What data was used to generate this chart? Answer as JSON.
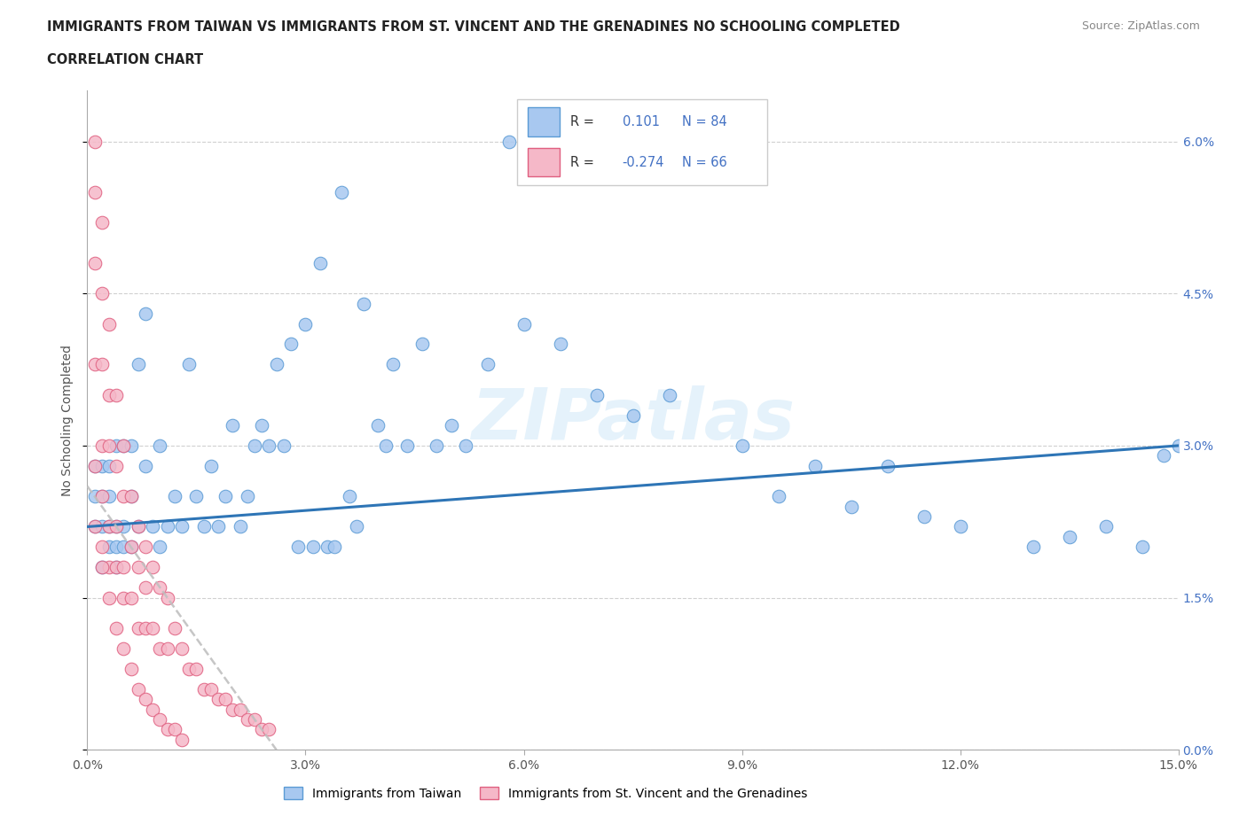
{
  "title_line1": "IMMIGRANTS FROM TAIWAN VS IMMIGRANTS FROM ST. VINCENT AND THE GRENADINES NO SCHOOLING COMPLETED",
  "title_line2": "CORRELATION CHART",
  "source_text": "Source: ZipAtlas.com",
  "ylabel": "No Schooling Completed",
  "xlim": [
    0.0,
    0.15
  ],
  "ylim": [
    0.0,
    0.065
  ],
  "xticks": [
    0.0,
    0.03,
    0.06,
    0.09,
    0.12,
    0.15
  ],
  "xticklabels": [
    "0.0%",
    "3.0%",
    "6.0%",
    "9.0%",
    "12.0%",
    "15.0%"
  ],
  "yticks": [
    0.0,
    0.015,
    0.03,
    0.045,
    0.06
  ],
  "ytick_labels_right": [
    "0.0%",
    "1.5%",
    "3.0%",
    "4.5%",
    "6.0%"
  ],
  "taiwan_color": "#a8c8f0",
  "taiwan_edge": "#5b9bd5",
  "stvincent_color": "#f5b8c8",
  "stvincent_edge": "#e06080",
  "taiwan_line_color": "#2e75b6",
  "stvincent_line_color": "#c0c0c0",
  "taiwan_R": "0.101",
  "taiwan_N": "84",
  "stvincent_R": "-0.274",
  "stvincent_N": "66",
  "watermark": "ZIPatlas",
  "legend_label_taiwan": "Immigrants from Taiwan",
  "legend_label_stvincent": "Immigrants from St. Vincent and the Grenadines",
  "tw_trend_x": [
    0.0,
    0.15
  ],
  "tw_trend_y": [
    0.022,
    0.03
  ],
  "sv_trend_x": [
    0.0,
    0.026
  ],
  "sv_trend_y": [
    0.026,
    0.0
  ],
  "taiwan_pts_x": [
    0.001,
    0.001,
    0.001,
    0.002,
    0.002,
    0.002,
    0.002,
    0.003,
    0.003,
    0.003,
    0.003,
    0.004,
    0.004,
    0.004,
    0.004,
    0.005,
    0.005,
    0.005,
    0.006,
    0.006,
    0.006,
    0.007,
    0.007,
    0.008,
    0.008,
    0.009,
    0.01,
    0.01,
    0.011,
    0.012,
    0.013,
    0.014,
    0.015,
    0.016,
    0.017,
    0.018,
    0.019,
    0.02,
    0.021,
    0.022,
    0.023,
    0.024,
    0.025,
    0.026,
    0.027,
    0.028,
    0.029,
    0.03,
    0.031,
    0.032,
    0.033,
    0.034,
    0.035,
    0.036,
    0.037,
    0.038,
    0.04,
    0.041,
    0.042,
    0.044,
    0.046,
    0.048,
    0.05,
    0.052,
    0.055,
    0.058,
    0.06,
    0.065,
    0.07,
    0.075,
    0.08,
    0.09,
    0.095,
    0.1,
    0.11,
    0.12,
    0.13,
    0.14,
    0.148,
    0.15,
    0.105,
    0.115,
    0.135,
    0.145
  ],
  "taiwan_pts_y": [
    0.022,
    0.025,
    0.028,
    0.018,
    0.022,
    0.025,
    0.028,
    0.02,
    0.022,
    0.025,
    0.028,
    0.018,
    0.02,
    0.022,
    0.03,
    0.02,
    0.022,
    0.03,
    0.02,
    0.025,
    0.03,
    0.022,
    0.038,
    0.028,
    0.043,
    0.022,
    0.02,
    0.03,
    0.022,
    0.025,
    0.022,
    0.038,
    0.025,
    0.022,
    0.028,
    0.022,
    0.025,
    0.032,
    0.022,
    0.025,
    0.03,
    0.032,
    0.03,
    0.038,
    0.03,
    0.04,
    0.02,
    0.042,
    0.02,
    0.048,
    0.02,
    0.02,
    0.055,
    0.025,
    0.022,
    0.044,
    0.032,
    0.03,
    0.038,
    0.03,
    0.04,
    0.03,
    0.032,
    0.03,
    0.038,
    0.06,
    0.042,
    0.04,
    0.035,
    0.033,
    0.035,
    0.03,
    0.025,
    0.028,
    0.028,
    0.022,
    0.02,
    0.022,
    0.029,
    0.03,
    0.024,
    0.023,
    0.021,
    0.02
  ],
  "sv_pts_x": [
    0.001,
    0.001,
    0.001,
    0.001,
    0.001,
    0.002,
    0.002,
    0.002,
    0.002,
    0.002,
    0.002,
    0.003,
    0.003,
    0.003,
    0.003,
    0.003,
    0.004,
    0.004,
    0.004,
    0.004,
    0.005,
    0.005,
    0.005,
    0.005,
    0.006,
    0.006,
    0.006,
    0.007,
    0.007,
    0.007,
    0.008,
    0.008,
    0.008,
    0.009,
    0.009,
    0.01,
    0.01,
    0.011,
    0.011,
    0.012,
    0.013,
    0.014,
    0.015,
    0.016,
    0.017,
    0.018,
    0.019,
    0.02,
    0.021,
    0.022,
    0.023,
    0.024,
    0.025,
    0.001,
    0.002,
    0.003,
    0.004,
    0.005,
    0.006,
    0.007,
    0.008,
    0.009,
    0.01,
    0.011,
    0.012,
    0.013
  ],
  "sv_pts_y": [
    0.06,
    0.055,
    0.048,
    0.038,
    0.028,
    0.052,
    0.045,
    0.038,
    0.03,
    0.025,
    0.02,
    0.042,
    0.035,
    0.03,
    0.022,
    0.018,
    0.035,
    0.028,
    0.022,
    0.018,
    0.03,
    0.025,
    0.018,
    0.015,
    0.025,
    0.02,
    0.015,
    0.022,
    0.018,
    0.012,
    0.02,
    0.016,
    0.012,
    0.018,
    0.012,
    0.016,
    0.01,
    0.015,
    0.01,
    0.012,
    0.01,
    0.008,
    0.008,
    0.006,
    0.006,
    0.005,
    0.005,
    0.004,
    0.004,
    0.003,
    0.003,
    0.002,
    0.002,
    0.022,
    0.018,
    0.015,
    0.012,
    0.01,
    0.008,
    0.006,
    0.005,
    0.004,
    0.003,
    0.002,
    0.002,
    0.001
  ]
}
